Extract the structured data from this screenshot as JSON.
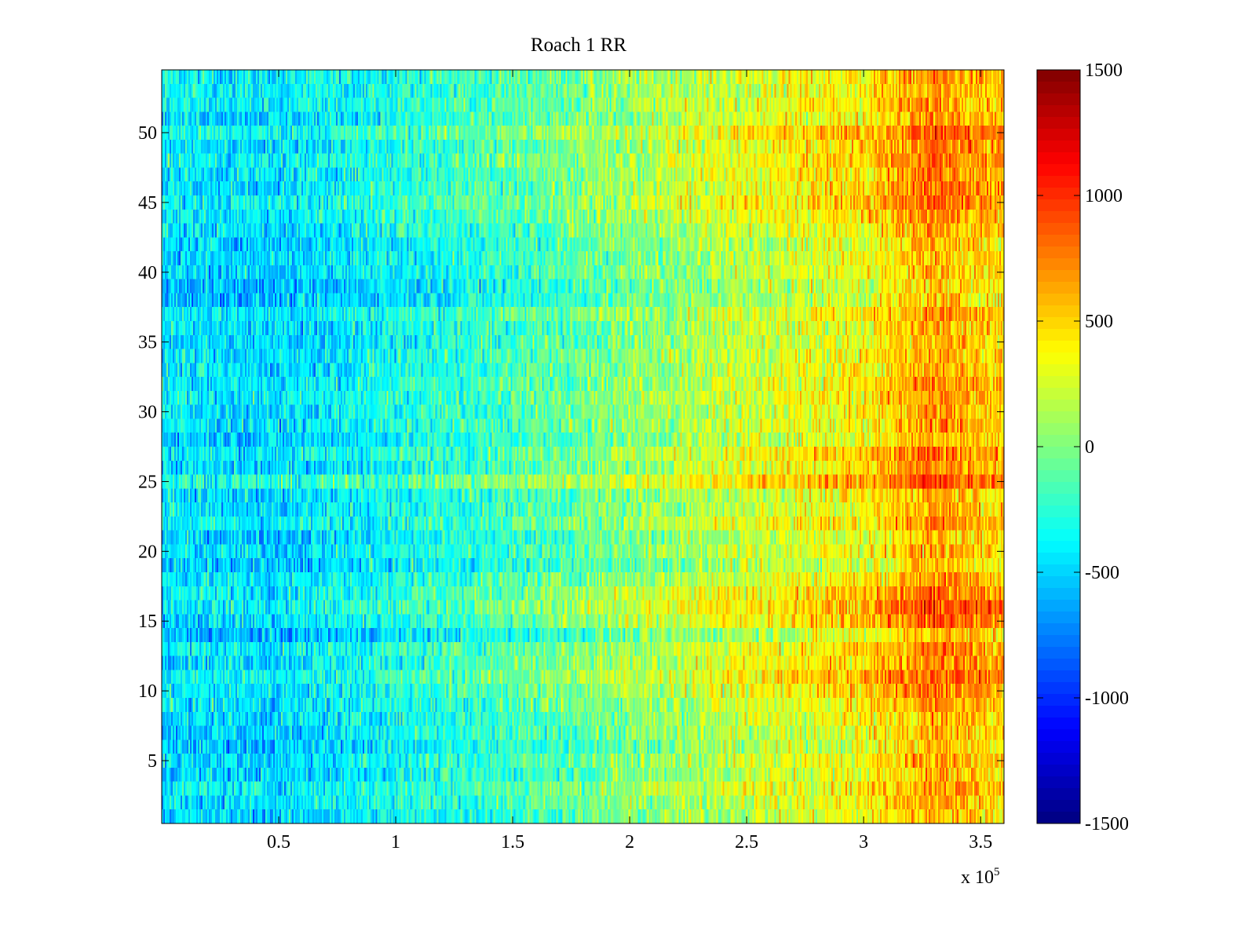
{
  "chart_data": {
    "type": "heatmap",
    "title": "Roach 1 RR",
    "xlabel": "",
    "ylabel": "",
    "x_multiplier_label": "x 10",
    "x_multiplier_exponent": "5",
    "xlim": [
      0,
      3.6
    ],
    "ylim": [
      0.5,
      54.5
    ],
    "x_ticks": [
      {
        "value": 0.5,
        "label": "0.5"
      },
      {
        "value": 1,
        "label": "1"
      },
      {
        "value": 1.5,
        "label": "1.5"
      },
      {
        "value": 2,
        "label": "2"
      },
      {
        "value": 2.5,
        "label": "2.5"
      },
      {
        "value": 3,
        "label": "3"
      },
      {
        "value": 3.5,
        "label": "3.5"
      }
    ],
    "y_ticks": [
      {
        "value": 5,
        "label": "5"
      },
      {
        "value": 10,
        "label": "10"
      },
      {
        "value": 15,
        "label": "15"
      },
      {
        "value": 20,
        "label": "20"
      },
      {
        "value": 25,
        "label": "25"
      },
      {
        "value": 30,
        "label": "30"
      },
      {
        "value": 35,
        "label": "35"
      },
      {
        "value": 40,
        "label": "40"
      },
      {
        "value": 45,
        "label": "45"
      },
      {
        "value": 50,
        "label": "50"
      }
    ],
    "rows": 54,
    "colormap": "jet",
    "color_range": [
      -1500,
      1500
    ],
    "colorbar_ticks": [
      {
        "value": 1500,
        "label": "1500"
      },
      {
        "value": 1000,
        "label": "1000"
      },
      {
        "value": 500,
        "label": "500"
      },
      {
        "value": 0,
        "label": "0"
      },
      {
        "value": -500,
        "label": "-500"
      },
      {
        "value": -1000,
        "label": "-1000"
      },
      {
        "value": -1500,
        "label": "-1500"
      }
    ],
    "column_mean_profile": [
      {
        "x": 0.0,
        "mean": -450
      },
      {
        "x": 0.5,
        "mean": -500
      },
      {
        "x": 1.0,
        "mean": -350
      },
      {
        "x": 1.5,
        "mean": -200
      },
      {
        "x": 2.0,
        "mean": 0
      },
      {
        "x": 2.5,
        "mean": 200
      },
      {
        "x": 3.0,
        "mean": 350
      },
      {
        "x": 3.3,
        "mean": 650
      },
      {
        "x": 3.6,
        "mean": 450
      }
    ],
    "high_rows": [
      {
        "y": 15.5,
        "boost": 280
      },
      {
        "y": 11,
        "boost": 180
      },
      {
        "y": 26,
        "boost": 180
      },
      {
        "y": 46,
        "boost": 200
      },
      {
        "y": 49.5,
        "boost": 160
      }
    ],
    "grid": false,
    "legend": "none"
  }
}
